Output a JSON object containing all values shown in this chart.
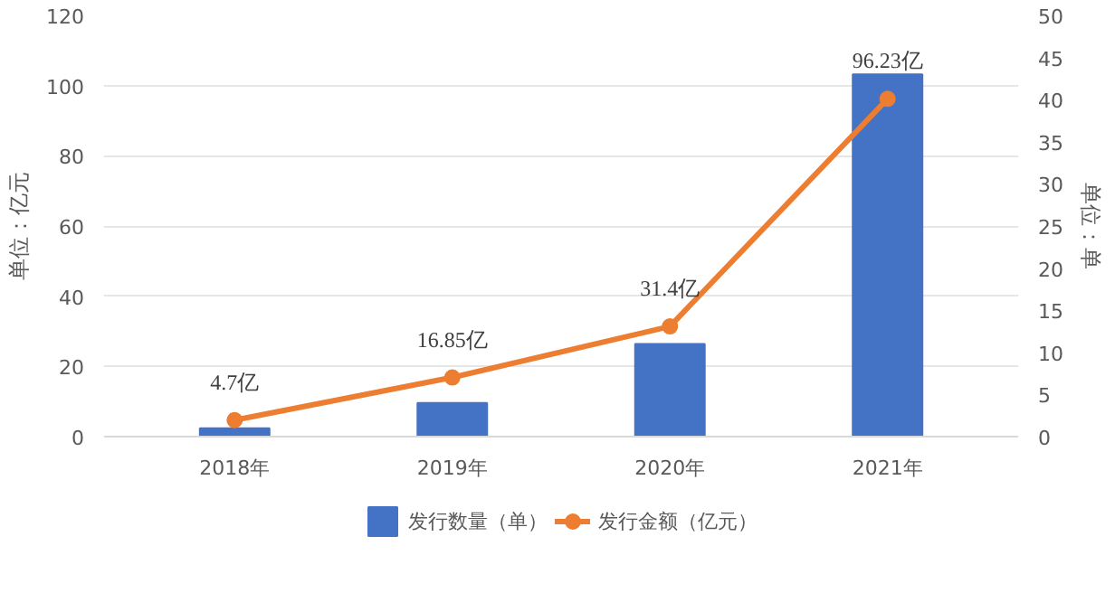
{
  "chart_data": {
    "type": "bar",
    "categories": [
      "2018年",
      "2019年",
      "2020年",
      "2021年"
    ],
    "ylabel": "单位：亿元",
    "y2label": "单位：单",
    "ylim": [
      0,
      120
    ],
    "yticks": [
      0,
      20,
      40,
      60,
      80,
      100,
      120
    ],
    "y2lim": [
      0,
      50
    ],
    "y2ticks": [
      0,
      5,
      10,
      15,
      20,
      25,
      30,
      35,
      40,
      45,
      50
    ],
    "series": [
      {
        "name": "发行数量（单）",
        "axis": "y2",
        "color": "#4472c4",
        "values": [
          1,
          4,
          11,
          43
        ]
      },
      {
        "name": "发行金额（亿元）",
        "type": "line",
        "color": "#ed7d31",
        "values": [
          4.7,
          16.85,
          31.4,
          96.23
        ],
        "value_labels": [
          "4.7亿",
          "16.85亿",
          "31.4亿",
          "96.23亿"
        ],
        "marker": "circle"
      }
    ],
    "grid": "y",
    "legend": "bottom"
  }
}
